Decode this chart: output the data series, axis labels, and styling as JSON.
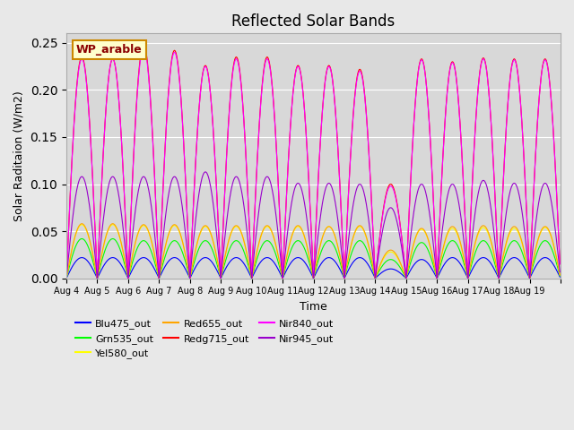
{
  "title": "Reflected Solar Bands",
  "xlabel": "Time",
  "ylabel": "Solar Raditaion (W/m2)",
  "legend_label": "WP_arable",
  "ylim": [
    0,
    0.26
  ],
  "background_color": "#e8e8e8",
  "plot_bg_color": "#d8d8d8",
  "num_days": 16,
  "series": [
    {
      "name": "Blu475_out",
      "color": "#0000ff"
    },
    {
      "name": "Grn535_out",
      "color": "#00ff00"
    },
    {
      "name": "Yel580_out",
      "color": "#ffff00"
    },
    {
      "name": "Red655_out",
      "color": "#ffa500"
    },
    {
      "name": "Redg715_out",
      "color": "#ff0000"
    },
    {
      "name": "Nir840_out",
      "color": "#ff00ff"
    },
    {
      "name": "Nir945_out",
      "color": "#9900cc"
    }
  ],
  "peak_variations": {
    "Blu475_out": [
      0.022,
      0.022,
      0.022,
      0.022,
      0.022,
      0.022,
      0.022,
      0.022,
      0.022,
      0.022,
      0.01,
      0.02,
      0.022,
      0.022,
      0.022,
      0.022
    ],
    "Grn535_out": [
      0.042,
      0.042,
      0.04,
      0.04,
      0.04,
      0.04,
      0.04,
      0.04,
      0.04,
      0.04,
      0.02,
      0.038,
      0.04,
      0.04,
      0.04,
      0.04
    ],
    "Yel580_out": [
      0.057,
      0.057,
      0.056,
      0.056,
      0.055,
      0.055,
      0.055,
      0.055,
      0.055,
      0.055,
      0.028,
      0.052,
      0.053,
      0.054,
      0.053,
      0.054
    ],
    "Red655_out": [
      0.058,
      0.058,
      0.057,
      0.057,
      0.056,
      0.056,
      0.056,
      0.056,
      0.055,
      0.056,
      0.03,
      0.053,
      0.055,
      0.056,
      0.055,
      0.055
    ],
    "Redg715_out": [
      0.235,
      0.233,
      0.248,
      0.242,
      0.226,
      0.235,
      0.235,
      0.226,
      0.226,
      0.222,
      0.1,
      0.233,
      0.23,
      0.234,
      0.233,
      0.233
    ],
    "Nir840_out": [
      0.233,
      0.233,
      0.245,
      0.24,
      0.225,
      0.233,
      0.233,
      0.225,
      0.225,
      0.22,
      0.098,
      0.232,
      0.229,
      0.233,
      0.232,
      0.232
    ],
    "Nir945_out": [
      0.108,
      0.108,
      0.108,
      0.108,
      0.113,
      0.108,
      0.108,
      0.101,
      0.101,
      0.1,
      0.075,
      0.1,
      0.1,
      0.104,
      0.101,
      0.101
    ]
  },
  "tick_positions": [
    0,
    1,
    2,
    3,
    4,
    5,
    6,
    7,
    8,
    9,
    10,
    11,
    12,
    13,
    14,
    15,
    16
  ],
  "tick_labels": [
    "Aug 4",
    "Aug 5",
    "Aug 6",
    "Aug 7",
    "Aug 8",
    "Aug 9",
    "Aug 10",
    "Aug 11",
    "Aug 12",
    "Aug 13",
    "Aug 14",
    "Aug 15",
    "Aug 16",
    "Aug 17",
    "Aug 18",
    "Aug 19",
    ""
  ]
}
